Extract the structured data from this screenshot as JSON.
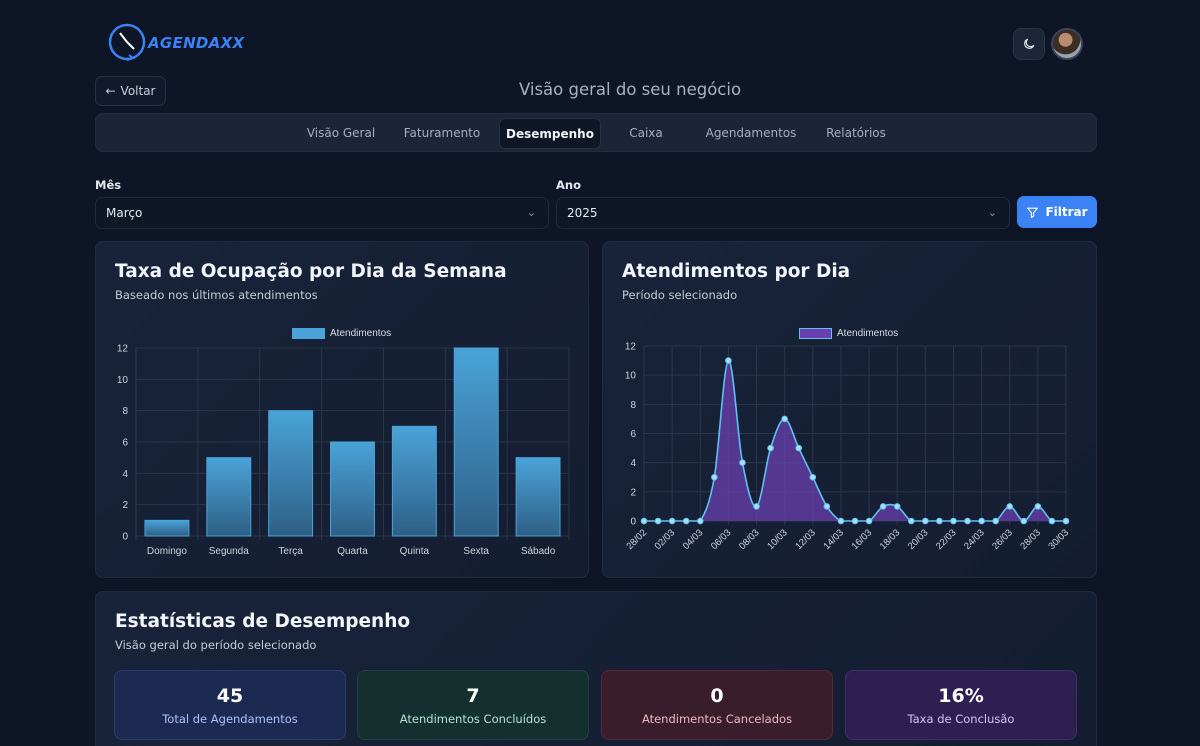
{
  "app": {
    "name": "AGENDAXX"
  },
  "header": {
    "back_label": "Voltar",
    "page_title": "Visão geral do seu negócio"
  },
  "tabs": [
    {
      "label": "Visão Geral"
    },
    {
      "label": "Faturamento"
    },
    {
      "label": "Desempenho"
    },
    {
      "label": "Caixa"
    },
    {
      "label": "Agendamentos"
    },
    {
      "label": "Relatórios"
    }
  ],
  "filters": {
    "month_label": "Mês",
    "month_value": "Março",
    "year_label": "Ano",
    "year_value": "2025",
    "filter_button": "Filtrar"
  },
  "occupancy_card": {
    "title": "Taxa de Ocupação por Dia da Semana",
    "subtitle": "Baseado nos últimos atendimentos"
  },
  "daily_card": {
    "title": "Atendimentos por Dia",
    "subtitle": "Período selecionado"
  },
  "stats_card": {
    "title": "Estatísticas de Desempenho",
    "subtitle": "Visão geral do período selecionado"
  },
  "stats": [
    {
      "value": "45",
      "label": "Total de Agendamentos",
      "bg": "#1c2a52",
      "border": "#2b3d70",
      "fg": "#a9c3ff"
    },
    {
      "value": "7",
      "label": "Atendimentos Concluídos",
      "bg": "#14302e",
      "border": "#1f4240",
      "fg": "#b6e3d3"
    },
    {
      "value": "0",
      "label": "Atendimentos Cancelados",
      "bg": "#3a1d2a",
      "border": "#52283a",
      "fg": "#f0b9c4"
    },
    {
      "value": "16%",
      "label": "Taxa de Conclusão",
      "bg": "#2e1f52",
      "border": "#432d70",
      "fg": "#d6c3ff"
    }
  ],
  "chart_data": [
    {
      "type": "bar",
      "categories": [
        "Domingo",
        "Segunda",
        "Terça",
        "Quarta",
        "Quinta",
        "Sexta",
        "Sábado"
      ],
      "series": [
        {
          "name": "Atendimentos",
          "values": [
            1,
            5,
            8,
            6,
            7,
            12,
            5
          ]
        }
      ],
      "y_ticks": [
        "0",
        "2",
        "4",
        "6",
        "8",
        "10",
        "12"
      ],
      "ylim": [
        0,
        12
      ],
      "grid": true,
      "legend": "top-center",
      "color": "#4aa3d8"
    },
    {
      "type": "area",
      "x": [
        "28/02",
        "01/03",
        "02/03",
        "03/03",
        "04/03",
        "05/03",
        "06/03",
        "07/03",
        "08/03",
        "09/03",
        "10/03",
        "11/03",
        "12/03",
        "13/03",
        "14/03",
        "15/03",
        "16/03",
        "17/03",
        "18/03",
        "19/03",
        "20/03",
        "21/03",
        "22/03",
        "23/03",
        "24/03",
        "25/03",
        "26/03",
        "27/03",
        "28/03",
        "29/03",
        "30/03"
      ],
      "x_tick_labels": [
        "28/02",
        "02/03",
        "04/03",
        "06/03",
        "08/03",
        "10/03",
        "12/03",
        "14/03",
        "16/03",
        "18/03",
        "20/03",
        "22/03",
        "24/03",
        "26/03",
        "28/03",
        "30/03"
      ],
      "series": [
        {
          "name": "Atendimentos",
          "values": [
            0,
            0,
            0,
            0,
            0,
            3,
            11,
            4,
            1,
            5,
            7,
            5,
            3,
            1,
            0,
            0,
            0,
            1,
            1,
            0,
            0,
            0,
            0,
            0,
            0,
            0,
            1,
            0,
            1,
            0,
            0
          ]
        }
      ],
      "y_ticks": [
        "0",
        "2",
        "4",
        "6",
        "8",
        "10",
        "12"
      ],
      "ylim": [
        0,
        12
      ],
      "grid": true,
      "legend": "top-center",
      "line_color": "#5ec2f0",
      "fill_color": "#6a3fb0"
    }
  ]
}
